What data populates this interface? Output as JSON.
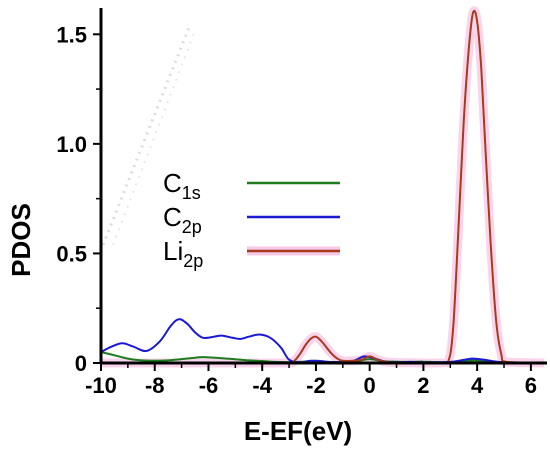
{
  "chart_data": {
    "type": "line",
    "xlabel": "E-EF(eV)",
    "ylabel": "PDOS",
    "xlim": [
      -10,
      6.6
    ],
    "ylim": [
      0,
      1.62
    ],
    "xticks": [
      "-10",
      "-8",
      "-6",
      "-4",
      "-2",
      "0",
      "2",
      "4",
      "6"
    ],
    "xtick_values": [
      -10,
      -8,
      -6,
      -4,
      -2,
      0,
      2,
      4,
      6
    ],
    "yticks": [
      "0",
      "0.5",
      "1.0",
      "1.5"
    ],
    "ytick_values": [
      0,
      0.5,
      1.0,
      1.5
    ],
    "grid": false,
    "legend_position": "center-left",
    "series": [
      {
        "name": "C1s",
        "label_main": "C",
        "label_sub": "1s",
        "color": "#1e7b1e",
        "x": [
          -10,
          -9.5,
          -9,
          -8.5,
          -8,
          -7.5,
          -7,
          -6.5,
          -6.2,
          -5.5,
          -5,
          -4.5,
          -4,
          -3.5,
          -3,
          -2.5,
          -2,
          -1.5,
          -1,
          -0.5,
          0,
          0.5,
          1,
          1.5,
          2,
          2.5,
          3,
          3.5,
          3.9,
          4.3,
          5,
          6.5
        ],
        "y": [
          0.05,
          0.035,
          0.02,
          0.012,
          0.01,
          0.012,
          0.018,
          0.024,
          0.027,
          0.022,
          0.017,
          0.012,
          0.009,
          0.005,
          0.004,
          0.006,
          0.01,
          0.005,
          0.004,
          0.008,
          0.018,
          0.008,
          0.006,
          0.005,
          0.006,
          0.004,
          0.004,
          0.008,
          0.012,
          0.007,
          0.002,
          0.002
        ]
      },
      {
        "name": "C2p",
        "label_main": "C",
        "label_sub": "2p",
        "color": "#1a1ad6",
        "x": [
          -10,
          -9.6,
          -9.2,
          -8.8,
          -8.3,
          -7.8,
          -7.4,
          -7.1,
          -6.8,
          -6.5,
          -6.2,
          -5.8,
          -5.5,
          -5.1,
          -4.8,
          -4.5,
          -4.1,
          -3.7,
          -3.3,
          -3,
          -2.6,
          -2.2,
          -1.8,
          -1.4,
          -1,
          -0.6,
          -0.2,
          0.2,
          0.6,
          1,
          1.5,
          2,
          2.5,
          3,
          3.4,
          3.8,
          4.2,
          4.6,
          5,
          5.5,
          6.5
        ],
        "y": [
          0.05,
          0.075,
          0.09,
          0.075,
          0.055,
          0.1,
          0.17,
          0.2,
          0.18,
          0.14,
          0.115,
          0.12,
          0.125,
          0.115,
          0.11,
          0.12,
          0.13,
          0.115,
          0.07,
          0.015,
          0.003,
          0.01,
          0.008,
          0.004,
          0.006,
          0.01,
          0.03,
          0.02,
          0.006,
          0.003,
          0.005,
          0.003,
          0.003,
          0.005,
          0.012,
          0.02,
          0.016,
          0.008,
          0.003,
          0.002,
          0.002
        ]
      },
      {
        "name": "Li2p",
        "label_main": "Li",
        "label_sub": "2p",
        "color": "#a83a1e",
        "x": [
          -10,
          -4,
          -3,
          -2.8,
          -2.6,
          -2.4,
          -2.2,
          -2,
          -1.8,
          -1.6,
          -1.4,
          -1.2,
          -1,
          -0.6,
          -0.3,
          0,
          0.3,
          0.6,
          1,
          1.5,
          2,
          2.5,
          2.9,
          3.1,
          3.3,
          3.5,
          3.7,
          3.85,
          4,
          4.15,
          4.3,
          4.5,
          4.7,
          4.9,
          5.1,
          6.5
        ],
        "y": [
          0,
          0,
          0,
          0.01,
          0.04,
          0.08,
          0.11,
          0.12,
          0.1,
          0.07,
          0.04,
          0.02,
          0.01,
          0.01,
          0.015,
          0.03,
          0.015,
          0.005,
          0.002,
          0.001,
          0,
          0,
          0.002,
          0.15,
          0.6,
          1.1,
          1.45,
          1.6,
          1.56,
          1.35,
          1.0,
          0.55,
          0.2,
          0.04,
          0.005,
          0
        ]
      }
    ]
  }
}
